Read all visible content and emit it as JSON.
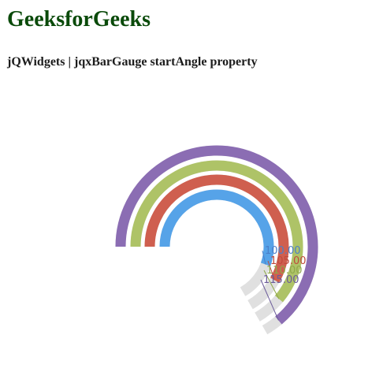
{
  "page": {
    "site_title": "GeeksforGeeks",
    "subtitle": "jQWidgets | jqxBarGauge startAngle property"
  },
  "gauge": {
    "widget": "jqxBarGauge",
    "start_angle_deg": 180,
    "end_angle_deg": -60,
    "max": 120,
    "track_color": "#e0e0e0",
    "bars": [
      {
        "value": 100,
        "label": "100.00",
        "color": "#56a3e8",
        "label_color": "#4a7fc9"
      },
      {
        "value": 105,
        "label": "105.00",
        "color": "#cf5f4f",
        "label_color": "#c04a3c"
      },
      {
        "value": 110,
        "label": "110.00",
        "color": "#aec367",
        "label_color": "#8fa84a"
      },
      {
        "value": 115,
        "label": "115.00",
        "color": "#8b6db3",
        "label_color": "#6b5b9a"
      }
    ]
  }
}
